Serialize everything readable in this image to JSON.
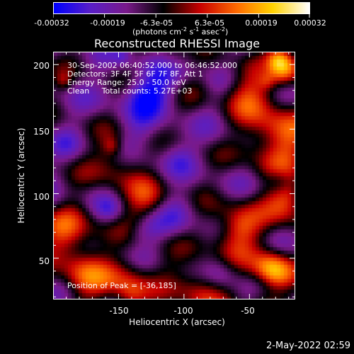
{
  "colorbar": {
    "tick_labels": [
      "-0.00032",
      "-0.00019",
      "-6.3e-05",
      "6.3e-05",
      "0.00019",
      "0.00032"
    ],
    "units_text": "(photons cm",
    "units_sup1": "-2",
    "units_mid": " s",
    "units_sup2": "-1",
    "units_end": " asec",
    "units_sup3": "-2",
    "units_close": ")"
  },
  "chart_data": {
    "type": "heatmap",
    "title": "Reconstructed RHESSI Image",
    "xlabel": "Heliocentric X (arcsec)",
    "ylabel": "Heliocentric Y (arcsec)",
    "xlim": [
      -200,
      -15
    ],
    "ylim": [
      18,
      210
    ],
    "x_ticks": [
      "-150",
      "-100",
      "-50"
    ],
    "y_ticks": [
      "200",
      "150",
      "100",
      "50"
    ],
    "colorbar_range": [
      -0.00032,
      0.00032
    ],
    "colormap": [
      "#0000ff",
      "#5a1fc8",
      "#7a1a8a",
      "#000000",
      "#c80000",
      "#ff6a00",
      "#ffd200",
      "#ffffff"
    ],
    "annotations": [
      "30-Sep-2002 06:40:52.000 to 06:46:52.000",
      "Detectors: 3F 4F 5F 6F 7F 8F, Att 1",
      "Energy Range: 25.0 - 50.0 keV",
      "Clean     Total counts: 5.27E+03"
    ],
    "peak_label": "Position of Peak = [-36,185]",
    "peak_position": [
      -36,
      185
    ]
  },
  "timestamp": "2-May-2022 02:59"
}
